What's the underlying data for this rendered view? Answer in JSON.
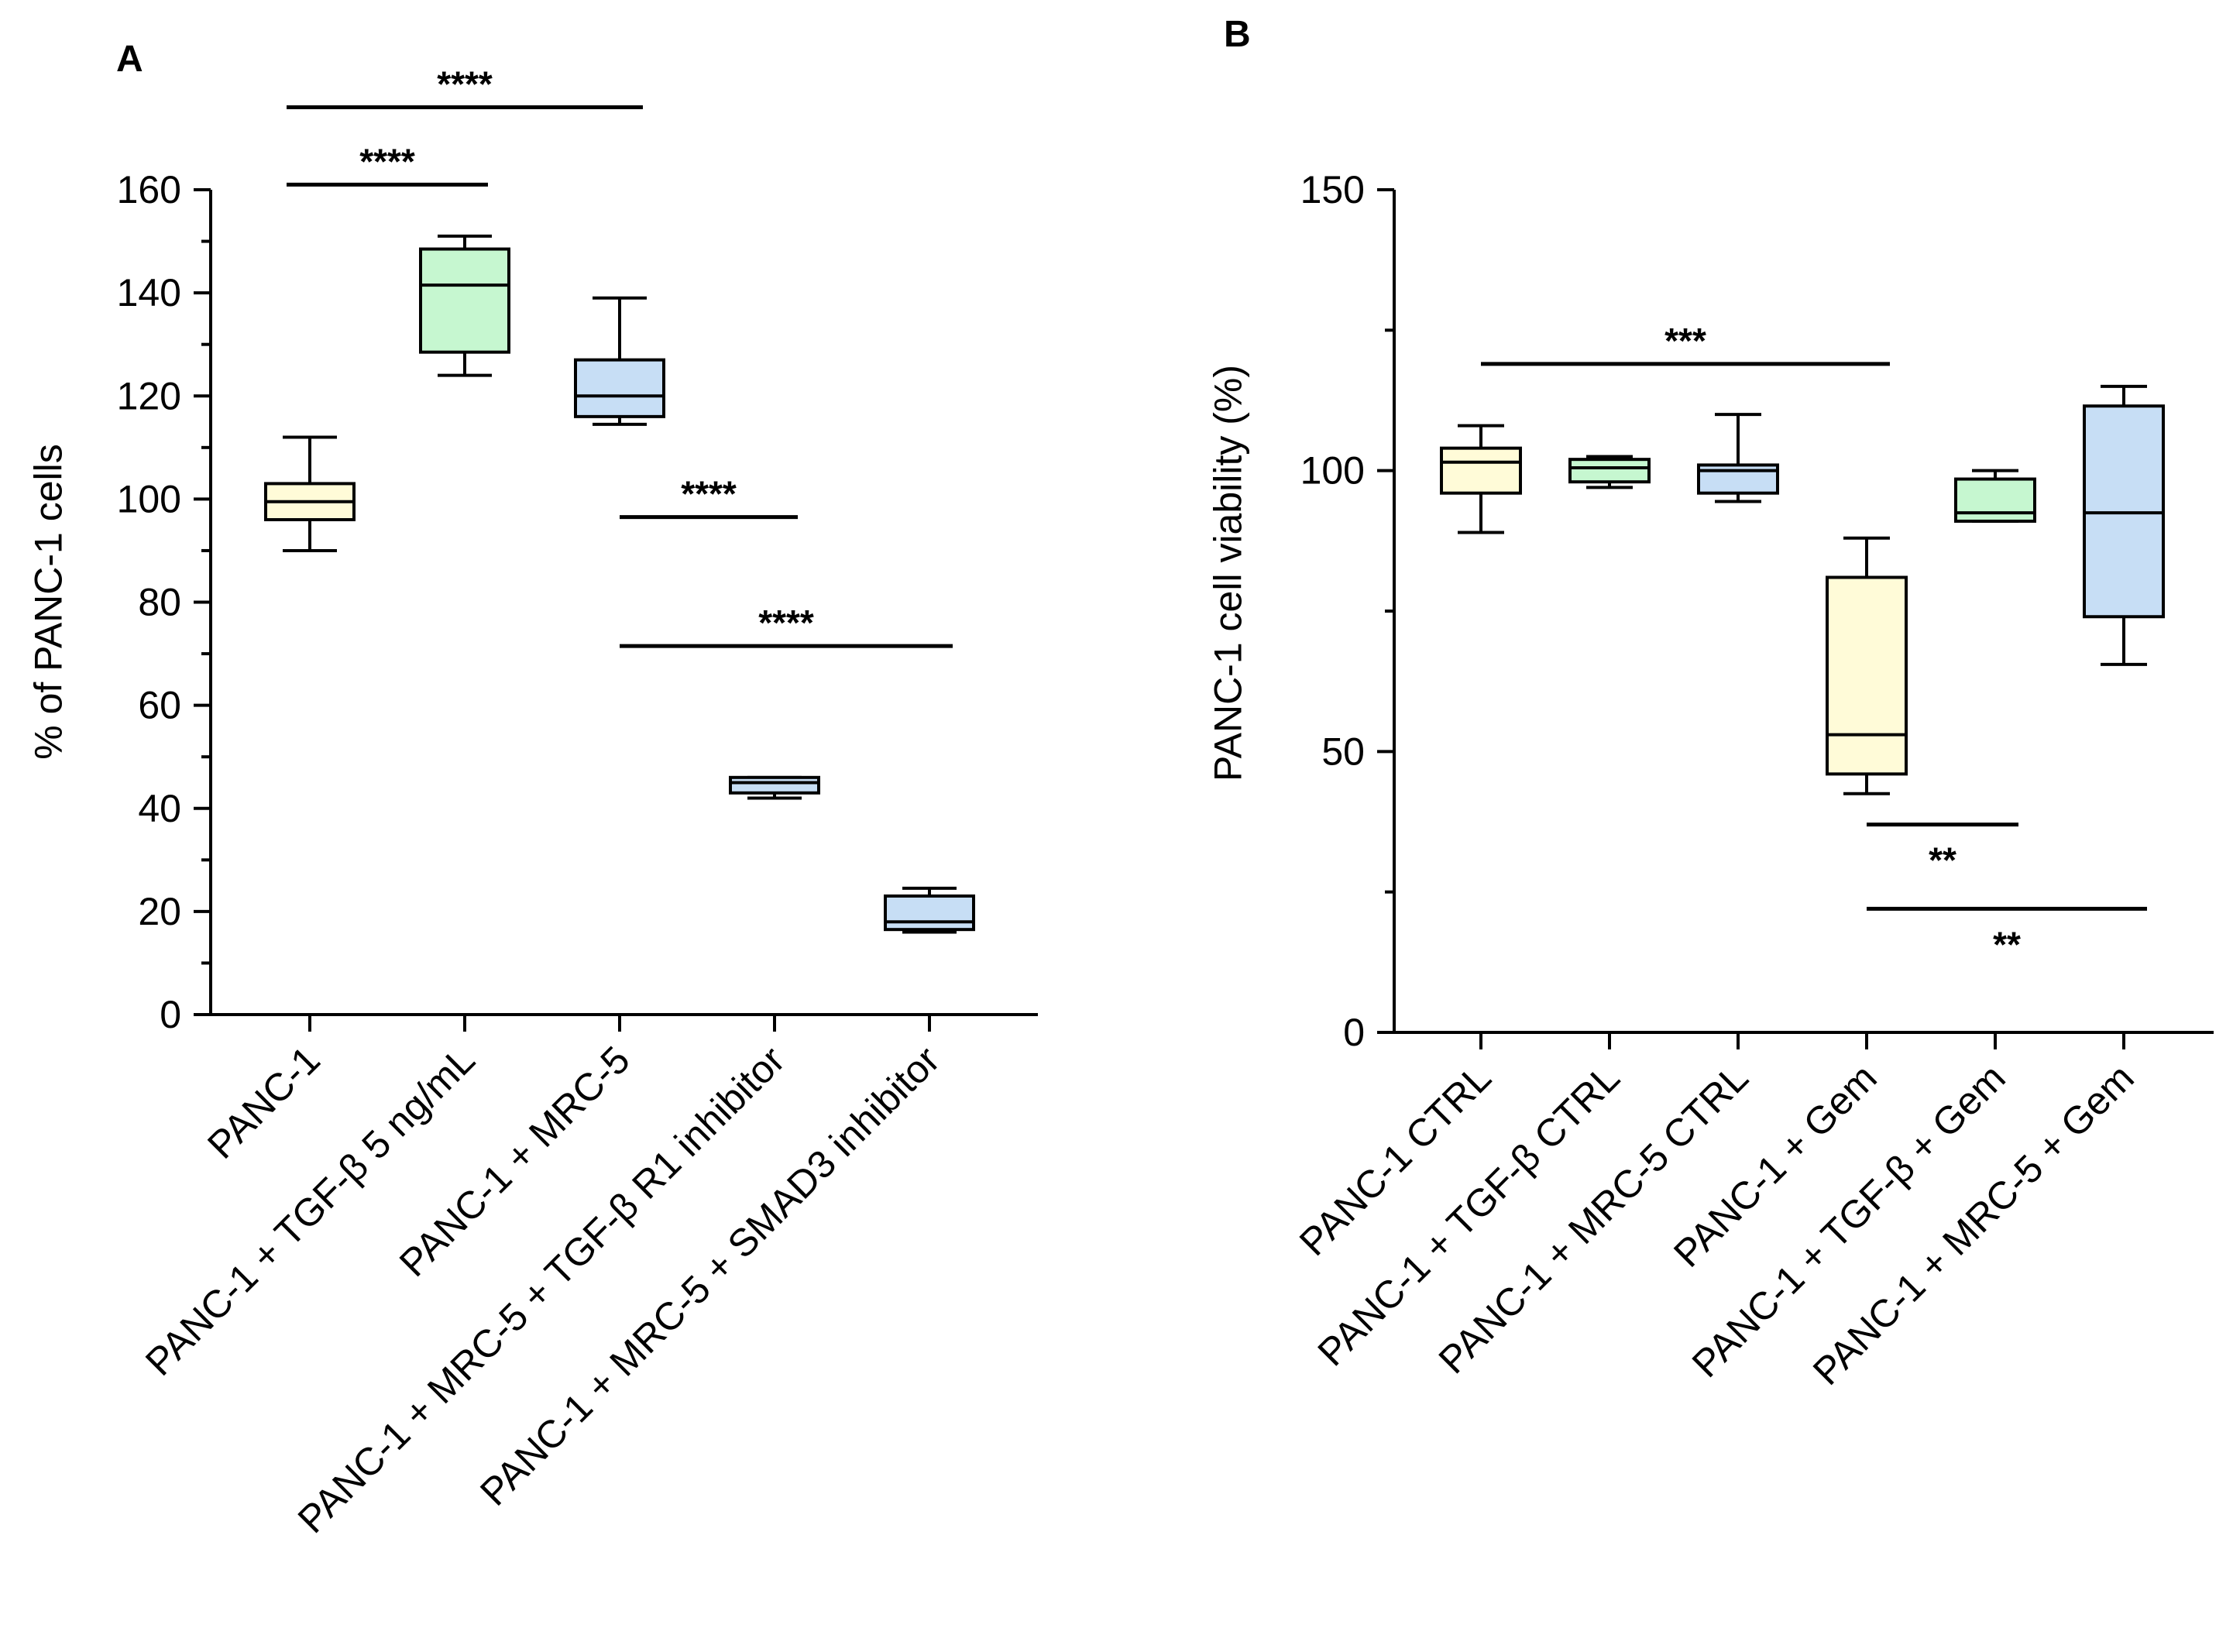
{
  "chart_data": [
    {
      "panel": "A",
      "type": "box",
      "ylabel": "% of PANC-1 cells",
      "ylim": [
        0,
        160
      ],
      "yticks": [
        0,
        20,
        40,
        60,
        80,
        100,
        120,
        140,
        160
      ],
      "categories": [
        "PANC-1",
        "PANC-1 + TGF-β 5 ng/mL",
        "PANC-1 + MRC-5",
        "PANC-1 + MRC-5 + TGF-β R1 inhibitor",
        "PANC-1 + MRC-5 + SMAD3 inhibitor"
      ],
      "boxes": [
        {
          "min": 90,
          "q1": 96,
          "median": 99.5,
          "q3": 103,
          "max": 112,
          "color": "#fffbd8"
        },
        {
          "min": 124,
          "q1": 128.5,
          "median": 141.5,
          "q3": 148.5,
          "max": 151,
          "color": "#c6f7d0"
        },
        {
          "min": 114.5,
          "q1": 116,
          "median": 120,
          "q3": 127,
          "max": 139,
          "color": "#c7def5"
        },
        {
          "min": 42,
          "q1": 43,
          "median": 45,
          "q3": 46,
          "max": 46,
          "color": "#c7def5"
        },
        {
          "min": 16,
          "q1": 16.5,
          "median": 18,
          "q3": 23,
          "max": 24.5,
          "color": "#c7def5"
        }
      ],
      "significance": [
        {
          "from": 0,
          "to": 2,
          "label": "****",
          "y": 176
        },
        {
          "from": 0,
          "to": 1,
          "label": "****",
          "y": 161
        },
        {
          "from": 2,
          "to": 3,
          "label": "****",
          "y": 96.5
        },
        {
          "from": 2,
          "to": 4,
          "label": "****",
          "y": 71.5
        }
      ]
    },
    {
      "panel": "B",
      "type": "box",
      "ylabel": "PANC-1 cell viability (%)",
      "ylim": [
        0,
        150
      ],
      "yticks": [
        0,
        50,
        100,
        150
      ],
      "categories": [
        "PANC-1 CTRL",
        "PANC-1 + TGF-β CTRL",
        "PANC-1 + MRC-5 CTRL",
        "PANC-1 + Gem",
        "PANC-1 + TGF-β + Gem",
        "PANC-1 + MRC-5 + Gem"
      ],
      "boxes": [
        {
          "min": 89,
          "q1": 96,
          "median": 101.5,
          "q3": 104,
          "max": 108,
          "color": "#fffbd8"
        },
        {
          "min": 97,
          "q1": 98,
          "median": 100.5,
          "q3": 102,
          "max": 102.5,
          "color": "#c6f7d0"
        },
        {
          "min": 94.5,
          "q1": 96,
          "median": 100,
          "q3": 101,
          "max": 110,
          "color": "#c7def5"
        },
        {
          "min": 42.5,
          "q1": 46,
          "median": 53,
          "q3": 81,
          "max": 88,
          "color": "#fffbd8"
        },
        {
          "min": 91,
          "q1": 91,
          "median": 92.5,
          "q3": 98.5,
          "max": 100,
          "color": "#c6f7d0"
        },
        {
          "min": 65.5,
          "q1": 74,
          "median": 92.5,
          "q3": 111.5,
          "max": 115,
          "color": "#c7def5"
        }
      ],
      "significance": [
        {
          "from": 0,
          "to": 3,
          "label": "***",
          "y": 119
        },
        {
          "from": 3,
          "to": 4,
          "label": "**",
          "y": 37
        },
        {
          "from": 3,
          "to": 5,
          "label": "**",
          "y": 22
        }
      ]
    }
  ]
}
